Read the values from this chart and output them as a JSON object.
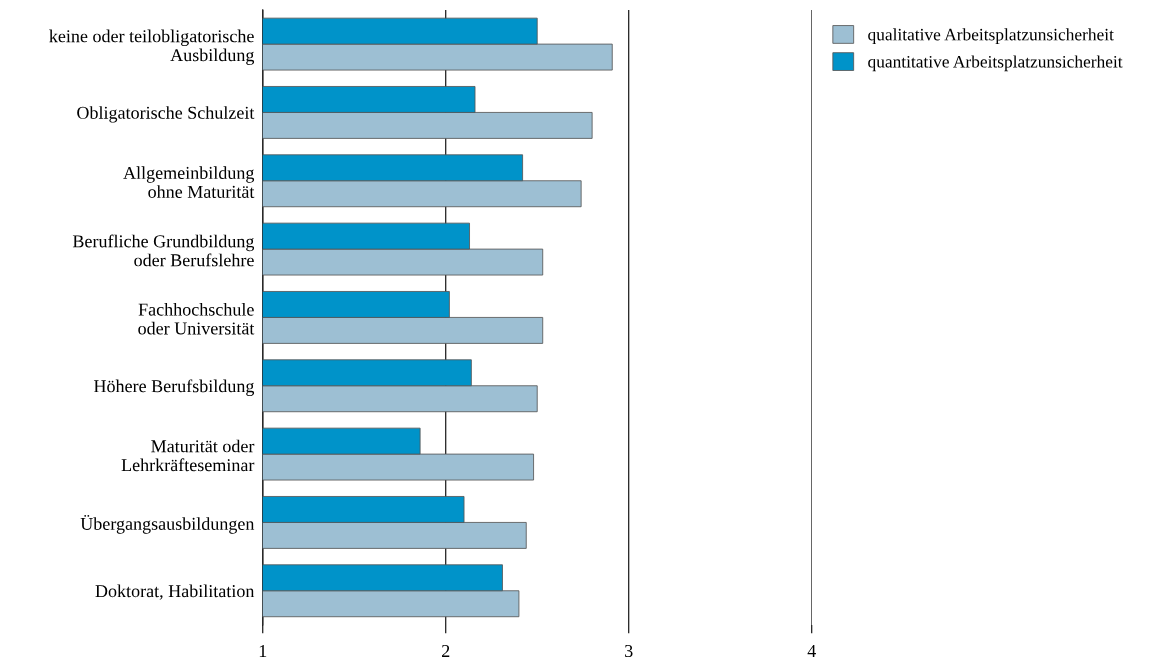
{
  "chart_data": {
    "type": "bar",
    "orientation": "horizontal",
    "categories": [
      "keine oder teilobligatorische\nAusbildung",
      "Obligatorische Schulzeit",
      "Allgemeinbildung\nohne Maturität",
      "Berufliche Grundbildung\noder Berufslehre",
      "Fachhochschule\noder Universität",
      "Höhere Berufsbildung",
      "Maturität oder\nLehrkräfteseminar",
      "Übergangsausbildungen",
      "Doktorat, Habilitation"
    ],
    "series": [
      {
        "name": "qualitative Arbeitsplatzunsicherheit",
        "color": "#9dbfd3",
        "values": [
          2.91,
          2.8,
          2.74,
          2.53,
          2.53,
          2.5,
          2.48,
          2.44,
          2.4
        ]
      },
      {
        "name": "quantitative Arbeitsplatzunsicherheit",
        "color": "#0093c9",
        "values": [
          2.5,
          2.16,
          2.42,
          2.13,
          2.02,
          2.14,
          1.86,
          2.1,
          2.31
        ]
      }
    ],
    "xlim": [
      1,
      4
    ],
    "xticks": [
      1,
      2,
      3,
      4
    ],
    "grid": "x",
    "legend": "top right"
  }
}
